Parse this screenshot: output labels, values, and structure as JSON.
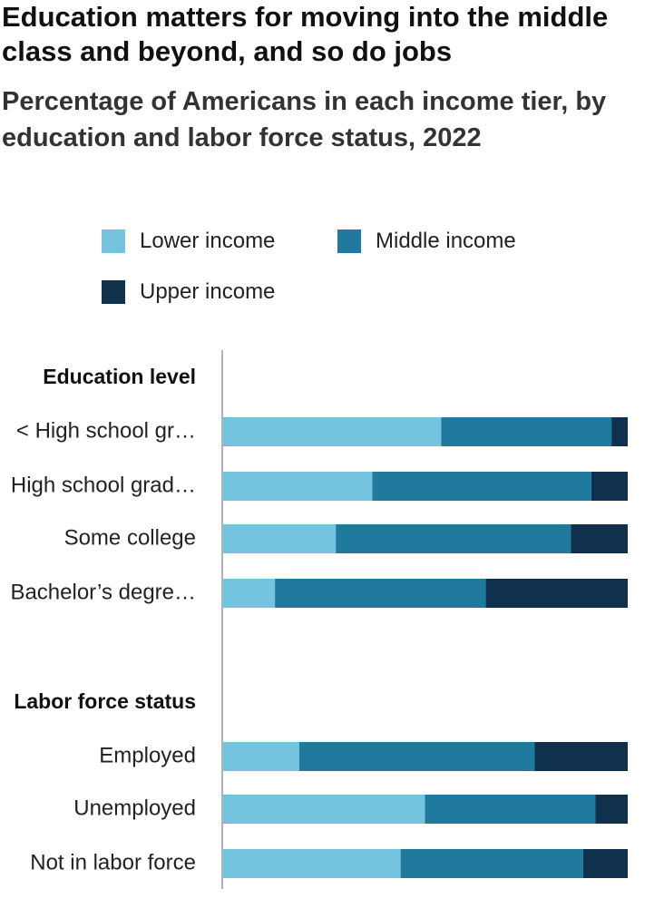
{
  "title": "Education matters for moving into the middle class and beyond, and so do jobs",
  "subtitle": "Percentage of Americans in each income tier, by education and labor force status, 2022",
  "colors": {
    "lower": "#74c3df",
    "middle": "#1f7a9e",
    "upper": "#10314d",
    "axis": "#999999"
  },
  "legend": [
    {
      "key": "lower",
      "label": "Lower income"
    },
    {
      "key": "middle",
      "label": "Middle income"
    },
    {
      "key": "upper",
      "label": "Upper income"
    }
  ],
  "chart_data": {
    "type": "bar",
    "orientation": "horizontal",
    "stacked": true,
    "xlim": [
      0,
      100
    ],
    "series_names": [
      "Lower income",
      "Middle income",
      "Upper income"
    ],
    "groups": [
      {
        "label": "Education level",
        "rows": [
          {
            "label": "< High school gr…",
            "values": [
              54,
              42,
              4
            ]
          },
          {
            "label": "High school grad…",
            "values": [
              37,
              54,
              9
            ]
          },
          {
            "label": "Some college",
            "values": [
              28,
              58,
              14
            ]
          },
          {
            "label": "Bachelor’s degre…",
            "values": [
              13,
              52,
              35
            ]
          }
        ]
      },
      {
        "label": "Labor force status",
        "rows": [
          {
            "label": "Employed",
            "values": [
              19,
              58,
              23
            ]
          },
          {
            "label": "Unemployed",
            "values": [
              50,
              42,
              8
            ]
          },
          {
            "label": "Not in labor force",
            "values": [
              44,
              45,
              11
            ]
          }
        ]
      }
    ]
  }
}
